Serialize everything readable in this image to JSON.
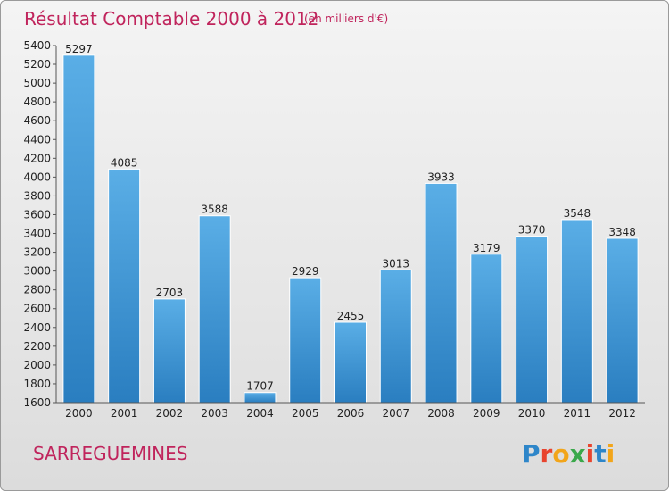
{
  "chart_data": {
    "type": "bar",
    "title": "Résultat Comptable 2000 à 2012",
    "subtitle": "(en milliers d'€)",
    "categories": [
      "2000",
      "2001",
      "2002",
      "2003",
      "2004",
      "2005",
      "2006",
      "2007",
      "2008",
      "2009",
      "2010",
      "2011",
      "2012"
    ],
    "values": [
      5297,
      4085,
      2703,
      3588,
      1707,
      2929,
      2455,
      3013,
      3933,
      3179,
      3370,
      3548,
      3348
    ],
    "value_labels": [
      "5297",
      "4085",
      "2703",
      "3588",
      "1707",
      "2929",
      "2455",
      "3013",
      "3933",
      "3179",
      "3370",
      "3548",
      "3348"
    ],
    "yticks": [
      "1600",
      "1800",
      "2000",
      "2200",
      "2400",
      "2600",
      "2800",
      "3000",
      "3200",
      "3400",
      "3600",
      "3800",
      "4000",
      "4200",
      "4400",
      "4600",
      "4800",
      "5000",
      "5200",
      "5400"
    ],
    "ylim": [
      1600,
      5400
    ],
    "grid": false,
    "bar_color_top": "#5aaee6",
    "bar_color_bottom": "#2a7ec0",
    "title_color": "#c0245c"
  },
  "footer": {
    "city": "SARREGUEMINES",
    "logo_text": "Proxiti"
  }
}
